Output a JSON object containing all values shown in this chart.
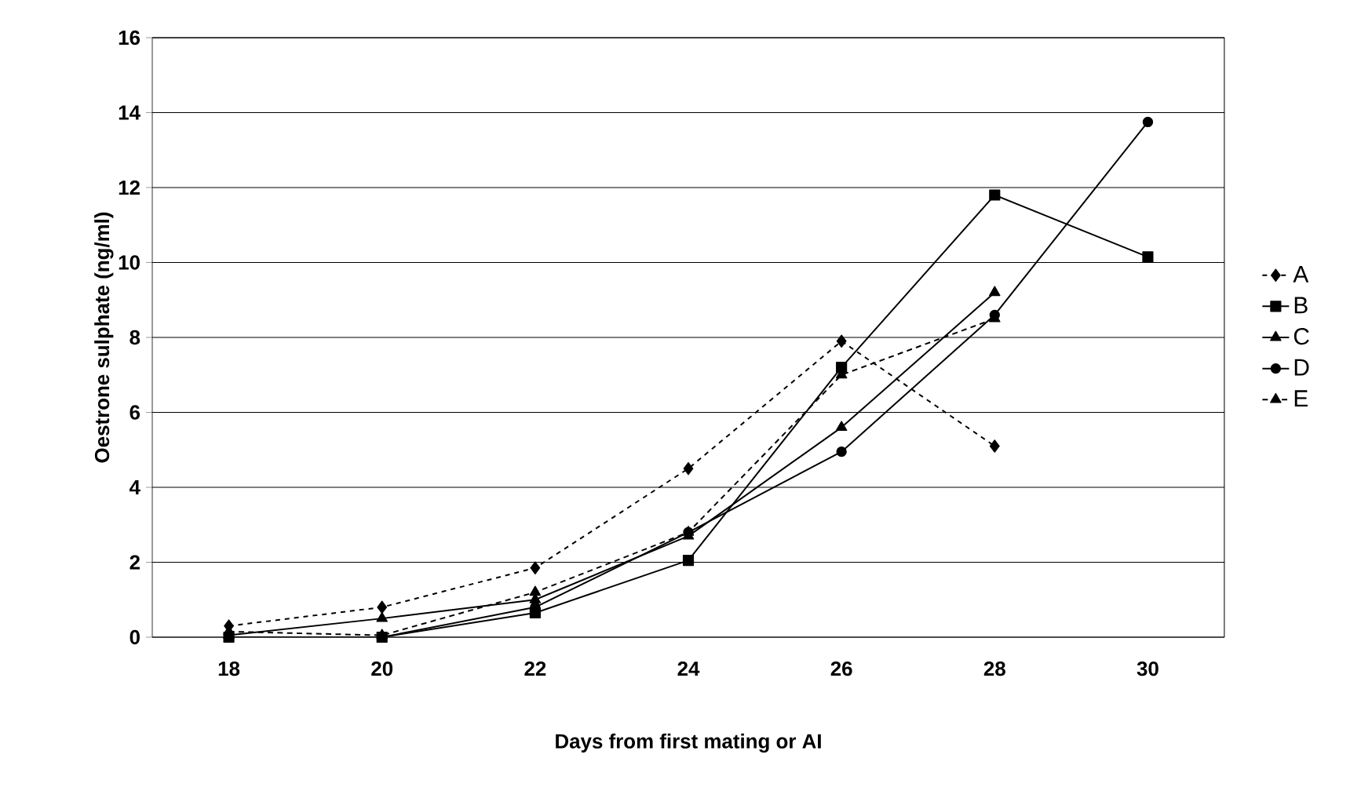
{
  "chart_data": {
    "type": "line",
    "xlabel": "Days from first mating or AI",
    "ylabel": "Oestrone sulphate (ng/ml)",
    "categories": [
      "18",
      "20",
      "22",
      "24",
      "26",
      "28",
      "30"
    ],
    "ylim": [
      0,
      16
    ],
    "yticks": [
      0,
      2,
      4,
      6,
      8,
      10,
      12,
      14,
      16
    ],
    "grid": "y",
    "legend": "right",
    "series": [
      {
        "name": "A",
        "color": "#000000",
        "marker": "diamond",
        "line_style": "dashed",
        "values": [
          0.3,
          0.8,
          1.85,
          4.5,
          7.9,
          5.1,
          null
        ]
      },
      {
        "name": "B",
        "color": "#000000",
        "marker": "square",
        "line_style": "solid",
        "values": [
          0,
          0,
          0.65,
          2.05,
          7.2,
          11.8,
          10.15
        ]
      },
      {
        "name": "C",
        "color": "#000000",
        "marker": "triangle",
        "line_style": "solid",
        "values": [
          0.05,
          0.5,
          1.0,
          2.7,
          5.6,
          9.2,
          null
        ]
      },
      {
        "name": "D",
        "color": "#000000",
        "marker": "circle",
        "line_style": "solid",
        "values": [
          0,
          0,
          0.8,
          2.8,
          4.95,
          8.6,
          13.75
        ]
      },
      {
        "name": "E",
        "color": "#000000",
        "marker": "triangle",
        "line_style": "dashed",
        "values": [
          0.15,
          0.05,
          1.2,
          2.8,
          7.0,
          8.5,
          null
        ]
      }
    ]
  }
}
